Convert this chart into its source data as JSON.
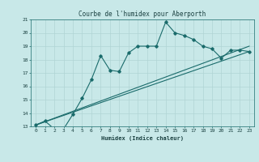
{
  "title": "Courbe de l'humidex pour Aberporth",
  "xlabel": "Humidex (Indice chaleur)",
  "bg_color": "#c8e8e8",
  "grid_color": "#b0d4d4",
  "line_color": "#1a6b6b",
  "xlim": [
    -0.5,
    23.5
  ],
  "ylim": [
    13,
    21
  ],
  "xticks": [
    0,
    1,
    2,
    3,
    4,
    5,
    6,
    7,
    8,
    9,
    10,
    11,
    12,
    13,
    14,
    15,
    16,
    17,
    18,
    19,
    20,
    21,
    22,
    23
  ],
  "yticks": [
    13,
    14,
    15,
    16,
    17,
    18,
    19,
    20,
    21
  ],
  "line1_x": [
    0,
    1,
    2,
    3,
    4,
    5,
    6,
    7,
    8,
    9,
    10,
    11,
    12,
    13,
    14,
    15,
    16,
    17,
    18,
    19,
    20,
    21,
    22,
    23
  ],
  "line1_y": [
    13.1,
    13.4,
    12.8,
    12.8,
    13.9,
    15.1,
    16.5,
    18.3,
    17.2,
    17.1,
    18.5,
    19.0,
    19.0,
    19.0,
    20.8,
    20.0,
    19.8,
    19.5,
    19.0,
    18.8,
    18.1,
    18.7,
    18.7,
    18.6
  ],
  "line2_x": [
    0,
    23
  ],
  "line2_y": [
    13.1,
    18.6
  ],
  "line3_x": [
    0,
    23
  ],
  "line3_y": [
    13.1,
    19.0
  ]
}
